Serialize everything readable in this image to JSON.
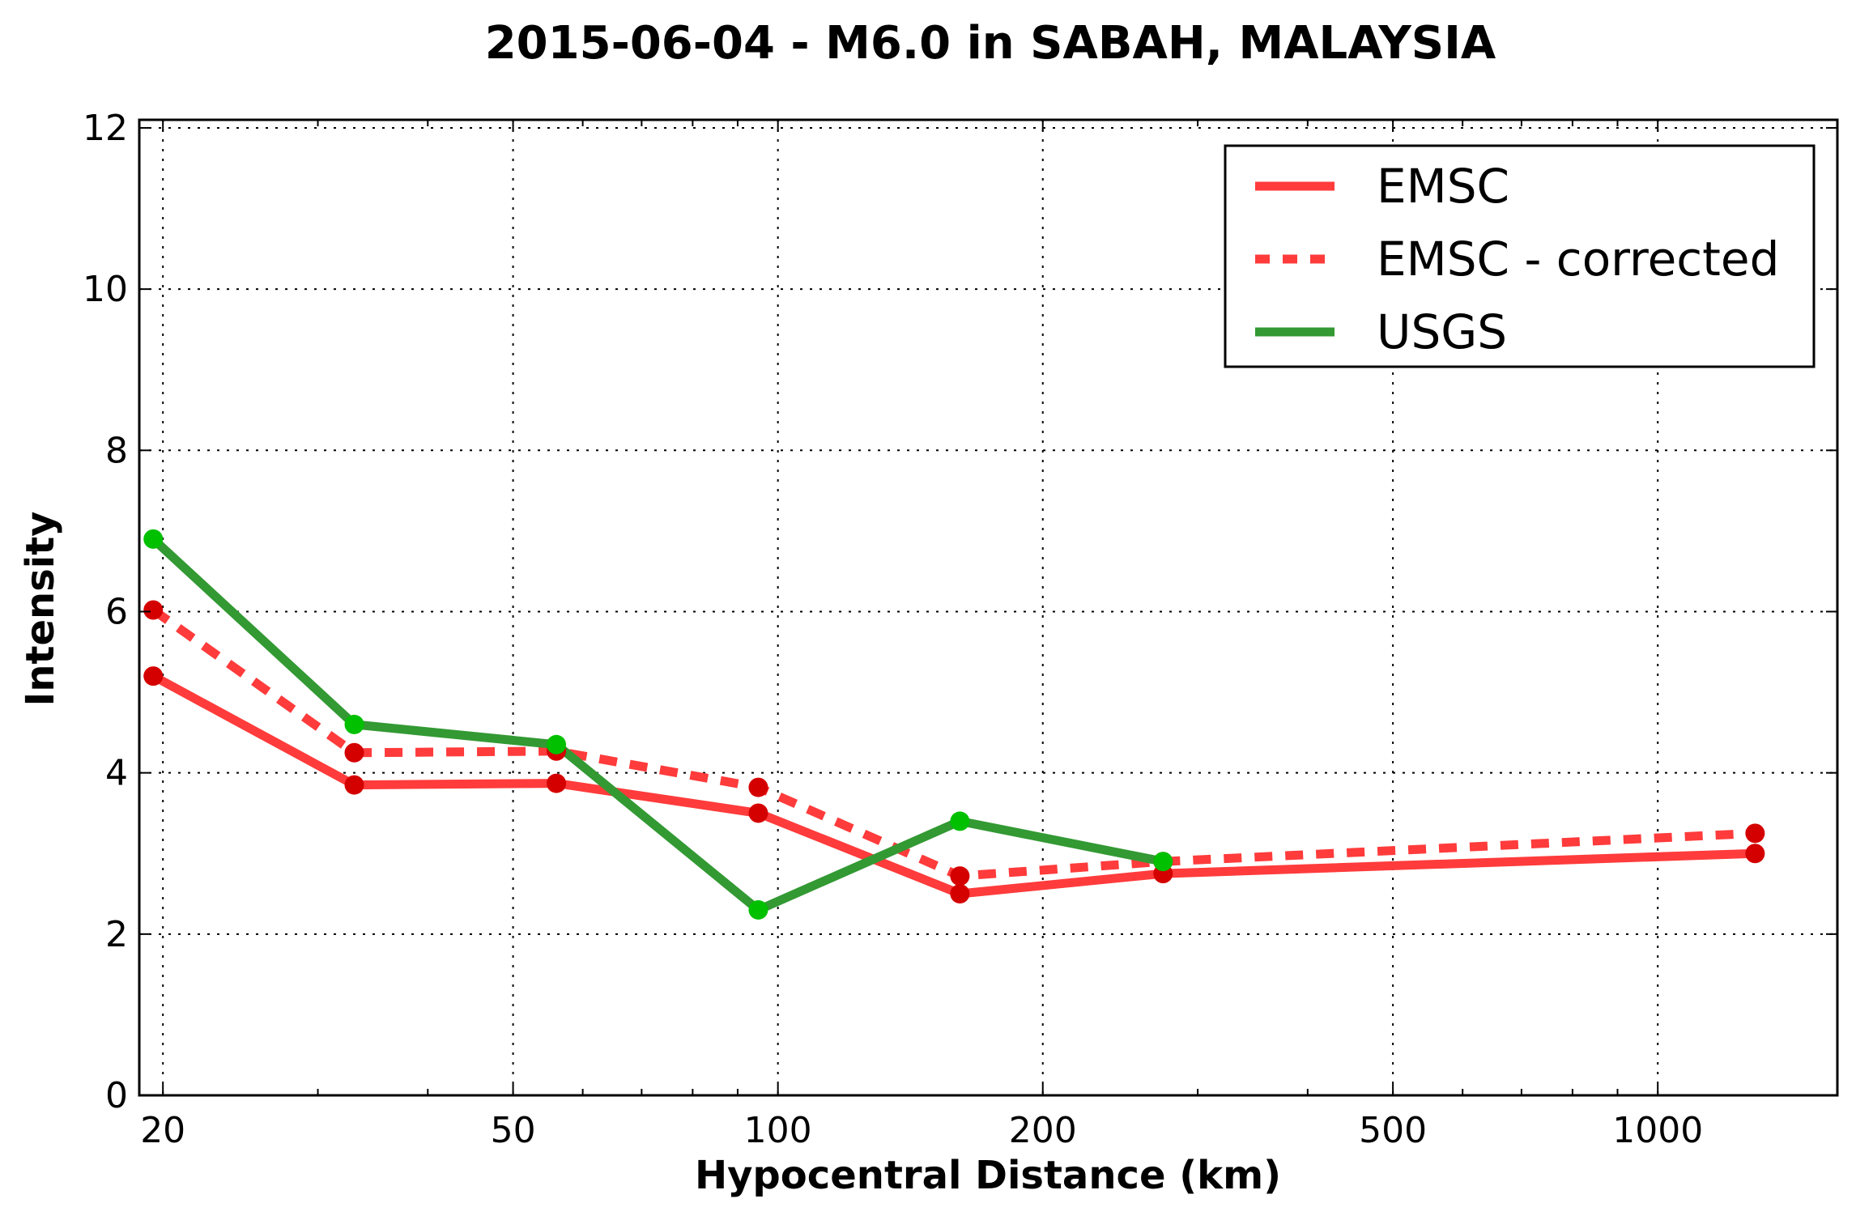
{
  "chart_data": {
    "type": "line",
    "title": "2015-06-04 - M6.0 in SABAH, MALAYSIA",
    "xlabel": "Hypocentral Distance (km)",
    "ylabel": "Intensity",
    "xscale": "log",
    "xlim": [
      18.8,
      1600
    ],
    "ylim": [
      0,
      12.1
    ],
    "xticks": [
      20,
      50,
      100,
      200,
      500,
      1000
    ],
    "xtick_labels": [
      "20",
      "50",
      "100",
      "200",
      "500",
      "1000"
    ],
    "yticks": [
      0,
      2,
      4,
      6,
      8,
      10,
      12
    ],
    "ytick_labels": [
      "0",
      "2",
      "4",
      "6",
      "8",
      "10",
      "12"
    ],
    "grid": true,
    "legend_position": "top-right",
    "series": [
      {
        "name": "EMSC",
        "style": "solid",
        "color": "#ff3b3b",
        "marker_color": "#d40000",
        "x": [
          19.5,
          33,
          56,
          95,
          161,
          274,
          1290
        ],
        "y": [
          5.2,
          3.85,
          3.87,
          3.5,
          2.5,
          2.75,
          3.0
        ]
      },
      {
        "name": "EMSC - corrected",
        "style": "dashed",
        "color": "#ff3b3b",
        "marker_color": "#d40000",
        "x": [
          19.5,
          33,
          56,
          95,
          161,
          274,
          1290
        ],
        "y": [
          6.02,
          4.25,
          4.27,
          3.82,
          2.72,
          2.9,
          3.25
        ]
      },
      {
        "name": "USGS",
        "style": "solid",
        "color": "#339933",
        "marker_color": "#00c000",
        "x": [
          19.5,
          33,
          56,
          95,
          161,
          274
        ],
        "y": [
          6.9,
          4.6,
          4.35,
          2.3,
          3.4,
          2.9
        ]
      }
    ]
  }
}
